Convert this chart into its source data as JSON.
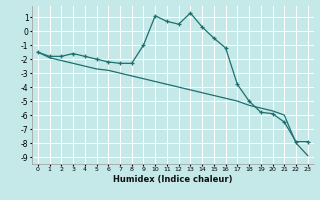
{
  "xlabel": "Humidex (Indice chaleur)",
  "background_color": "#c5e8e8",
  "grid_color": "#ffffff",
  "line_color": "#1e7070",
  "x_data": [
    0,
    1,
    2,
    3,
    4,
    5,
    6,
    7,
    8,
    9,
    10,
    11,
    12,
    13,
    14,
    15,
    16,
    17,
    18,
    19,
    20,
    21,
    22,
    23
  ],
  "y_curve": [
    -1.5,
    -1.8,
    -1.8,
    -1.6,
    -1.8,
    -2.0,
    -2.2,
    -2.3,
    -2.3,
    -1.0,
    1.1,
    0.7,
    0.5,
    1.3,
    0.3,
    -0.5,
    -1.2,
    -3.8,
    -5.0,
    -5.8,
    -5.9,
    -6.5,
    -7.9,
    -7.9
  ],
  "y_linear": [
    -1.5,
    -1.9,
    -2.1,
    -2.3,
    -2.5,
    -2.7,
    -2.8,
    -3.0,
    -3.2,
    -3.4,
    -3.6,
    -3.8,
    -4.0,
    -4.2,
    -4.4,
    -4.6,
    -4.8,
    -5.0,
    -5.3,
    -5.5,
    -5.7,
    -6.0,
    -8.0,
    -8.9
  ],
  "ylim": [
    -9.5,
    1.8
  ],
  "xlim": [
    -0.5,
    23.5
  ],
  "yticks": [
    1,
    0,
    -1,
    -2,
    -3,
    -4,
    -5,
    -6,
    -7,
    -8,
    -9
  ],
  "xticks": [
    0,
    1,
    2,
    3,
    4,
    5,
    6,
    7,
    8,
    9,
    10,
    11,
    12,
    13,
    14,
    15,
    16,
    17,
    18,
    19,
    20,
    21,
    22,
    23
  ]
}
